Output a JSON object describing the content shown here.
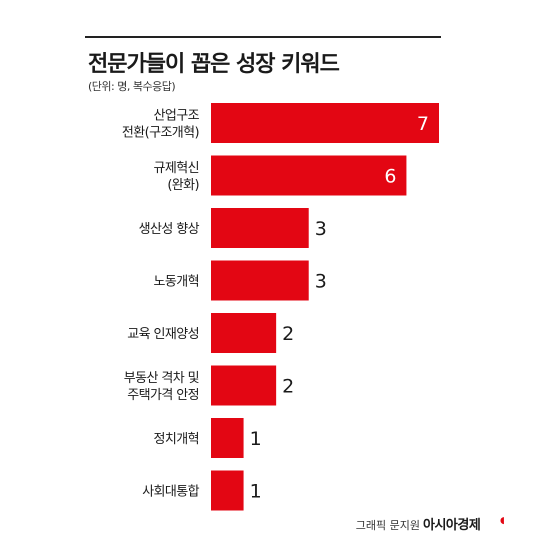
{
  "title": "전문가들이 꼽은 성장 키워드",
  "unit_note": "(단위: 명, 복수응답)",
  "credit": "그래픽 문지원",
  "brand": "아시아경제",
  "colors": {
    "bar": "#e30613",
    "text": "#1a1a1a",
    "value_inside": "#ffffff"
  },
  "chart_data": {
    "type": "bar",
    "orientation": "horizontal",
    "categories": [
      [
        "산업구조",
        "전환(구조개혁)"
      ],
      [
        "규제혁신",
        "(완화)"
      ],
      [
        "생산성 향상"
      ],
      [
        "노동개혁"
      ],
      [
        "교육 인재양성"
      ],
      [
        "부동산 격차 및",
        "주택가격 안정"
      ],
      [
        "정치개혁"
      ],
      [
        "사회대통합"
      ]
    ],
    "values": [
      7,
      6,
      3,
      3,
      2,
      2,
      1,
      1
    ],
    "xlim": [
      0,
      7
    ],
    "grid": false,
    "legend": "none"
  }
}
